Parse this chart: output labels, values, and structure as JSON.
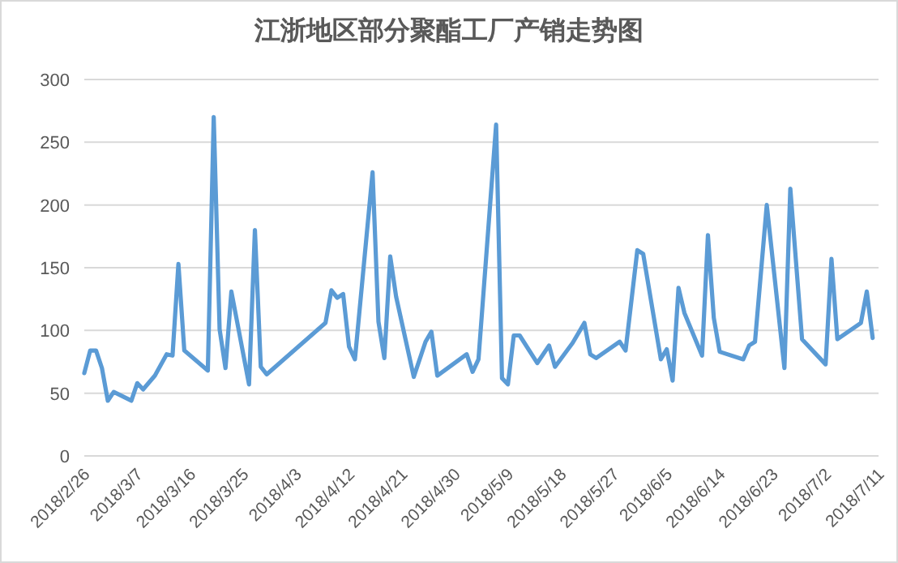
{
  "chart_data": {
    "type": "line",
    "title": "江浙地区部分聚酯工厂产销走势图",
    "x": [
      "2018-02-26",
      "2018-02-27",
      "2018-02-28",
      "2018-03-01",
      "2018-03-02",
      "2018-03-03",
      "2018-03-06",
      "2018-03-07",
      "2018-03-08",
      "2018-03-10",
      "2018-03-12",
      "2018-03-13",
      "2018-03-14",
      "2018-03-15",
      "2018-03-19",
      "2018-03-20",
      "2018-03-21",
      "2018-03-22",
      "2018-03-23",
      "2018-03-26",
      "2018-03-27",
      "2018-03-28",
      "2018-03-29",
      "2018-04-08",
      "2018-04-09",
      "2018-04-10",
      "2018-04-11",
      "2018-04-12",
      "2018-04-13",
      "2018-04-16",
      "2018-04-17",
      "2018-04-18",
      "2018-04-19",
      "2018-04-20",
      "2018-04-23",
      "2018-04-25",
      "2018-04-26",
      "2018-04-27",
      "2018-05-02",
      "2018-05-03",
      "2018-05-04",
      "2018-05-07",
      "2018-05-08",
      "2018-05-09",
      "2018-05-10",
      "2018-05-11",
      "2018-05-14",
      "2018-05-16",
      "2018-05-17",
      "2018-05-20",
      "2018-05-22",
      "2018-05-23",
      "2018-05-24",
      "2018-05-28",
      "2018-05-29",
      "2018-05-31",
      "2018-06-01",
      "2018-06-04",
      "2018-06-05",
      "2018-06-06",
      "2018-06-07",
      "2018-06-08",
      "2018-06-11",
      "2018-06-12",
      "2018-06-13",
      "2018-06-14",
      "2018-06-18",
      "2018-06-19",
      "2018-06-20",
      "2018-06-22",
      "2018-06-25",
      "2018-06-26",
      "2018-06-28",
      "2018-07-02",
      "2018-07-03",
      "2018-07-04",
      "2018-07-08",
      "2018-07-09",
      "2018-07-10"
    ],
    "series": [
      {
        "color": "#5b9bd5",
        "values": [
          66,
          84,
          84,
          70,
          44,
          51,
          44,
          58,
          53,
          64,
          81,
          80,
          153,
          84,
          68,
          270,
          101,
          70,
          131,
          57,
          180,
          71,
          65,
          106,
          132,
          126,
          129,
          87,
          77,
          226,
          107,
          78,
          159,
          127,
          63,
          91,
          99,
          64,
          81,
          67,
          77,
          264,
          62,
          57,
          96,
          96,
          74,
          88,
          71,
          90,
          106,
          81,
          78,
          91,
          84,
          164,
          161,
          77,
          85,
          60,
          134,
          114,
          80,
          176,
          110,
          83,
          77,
          88,
          91,
          200,
          70,
          213,
          93,
          73,
          157,
          93,
          106,
          131,
          94
        ]
      }
    ],
    "xlim": [
      "2018-02-26",
      "2018-07-11"
    ],
    "xticks": [
      {
        "value": "2018-02-26",
        "label": "2018/2/26"
      },
      {
        "value": "2018-03-07",
        "label": "2018/3/7"
      },
      {
        "value": "2018-03-16",
        "label": "2018/3/16"
      },
      {
        "value": "2018-03-25",
        "label": "2018/3/25"
      },
      {
        "value": "2018-04-03",
        "label": "2018/4/3"
      },
      {
        "value": "2018-04-12",
        "label": "2018/4/12"
      },
      {
        "value": "2018-04-21",
        "label": "2018/4/21"
      },
      {
        "value": "2018-04-30",
        "label": "2018/4/30"
      },
      {
        "value": "2018-05-09",
        "label": "2018/5/9"
      },
      {
        "value": "2018-05-18",
        "label": "2018/5/18"
      },
      {
        "value": "2018-05-27",
        "label": "2018/5/27"
      },
      {
        "value": "2018-06-05",
        "label": "2018/6/5"
      },
      {
        "value": "2018-06-14",
        "label": "2018/6/14"
      },
      {
        "value": "2018-06-23",
        "label": "2018/6/23"
      },
      {
        "value": "2018-07-02",
        "label": "2018/7/2"
      },
      {
        "value": "2018-07-11",
        "label": "2018/7/11"
      }
    ],
    "ylim": [
      0,
      300
    ],
    "yticks": [
      0,
      50,
      100,
      150,
      200,
      250,
      300
    ],
    "grid": "y",
    "marker": "none",
    "line_style": "solid"
  }
}
